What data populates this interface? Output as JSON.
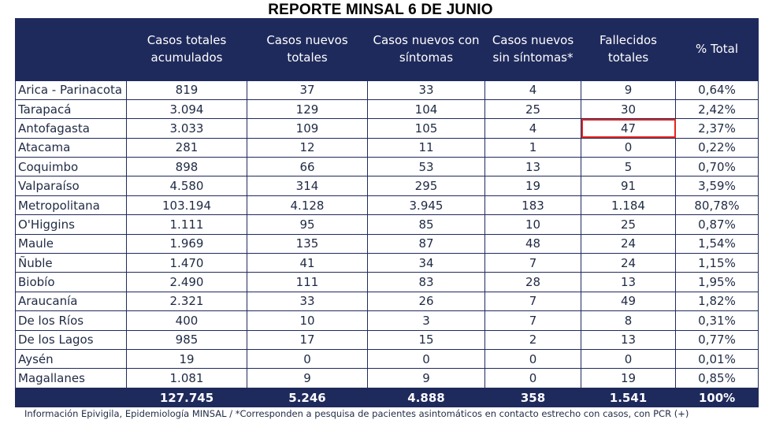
{
  "title": "REPORTE MINSAL 6 DE JUNIO",
  "headers": [
    "",
    "Casos totales acumulados",
    "Casos nuevos totales",
    "Casos nuevos con síntomas",
    "Casos nuevos sin síntomas*",
    "Fallecidos totales",
    "% Total"
  ],
  "rows": [
    [
      "Arica - Parinacota",
      "819",
      "37",
      "33",
      "4",
      "9",
      "0,64%"
    ],
    [
      "Tarapacá",
      "3.094",
      "129",
      "104",
      "25",
      "30",
      "2,42%"
    ],
    [
      "Antofagasta",
      "3.033",
      "109",
      "105",
      "4",
      "47",
      "2,37%"
    ],
    [
      "Atacama",
      "281",
      "12",
      "11",
      "1",
      "0",
      "0,22%"
    ],
    [
      "Coquimbo",
      "898",
      "66",
      "53",
      "13",
      "5",
      "0,70%"
    ],
    [
      "Valparaíso",
      "4.580",
      "314",
      "295",
      "19",
      "91",
      "3,59%"
    ],
    [
      "Metropolitana",
      "103.194",
      "4.128",
      "3.945",
      "183",
      "1.184",
      "80,78%"
    ],
    [
      "O'Higgins",
      "1.111",
      "95",
      "85",
      "10",
      "25",
      "0,87%"
    ],
    [
      "Maule",
      "1.969",
      "135",
      "87",
      "48",
      "24",
      "1,54%"
    ],
    [
      "Ñuble",
      "1.470",
      "41",
      "34",
      "7",
      "24",
      "1,15%"
    ],
    [
      "Biobío",
      "2.490",
      "111",
      "83",
      "28",
      "13",
      "1,95%"
    ],
    [
      "Araucanía",
      "2.321",
      "33",
      "26",
      "7",
      "49",
      "1,82%"
    ],
    [
      "De los Ríos",
      "400",
      "10",
      "3",
      "7",
      "8",
      "0,31%"
    ],
    [
      "De los Lagos",
      "985",
      "17",
      "15",
      "2",
      "13",
      "0,77%"
    ],
    [
      "Aysén",
      "19",
      "0",
      "0",
      "0",
      "0",
      "0,01%"
    ],
    [
      "Magallanes",
      "1.081",
      "9",
      "9",
      "0",
      "19",
      "0,85%"
    ]
  ],
  "totals": [
    "",
    "127.745",
    "5.246",
    "4.888",
    "358",
    "1.541",
    "100%"
  ],
  "highlight": {
    "row": 2,
    "col": 5,
    "color": "#e8231f"
  },
  "colors": {
    "header_bg": "#1f2a5c",
    "header_text": "#ffffff",
    "body_text": "#1f2a44"
  },
  "footnote": "Información Epivigila, Epidemiología MINSAL / *Corresponden a pesquisa de pacientes asintomáticos en contacto estrecho con casos, con PCR (+)"
}
